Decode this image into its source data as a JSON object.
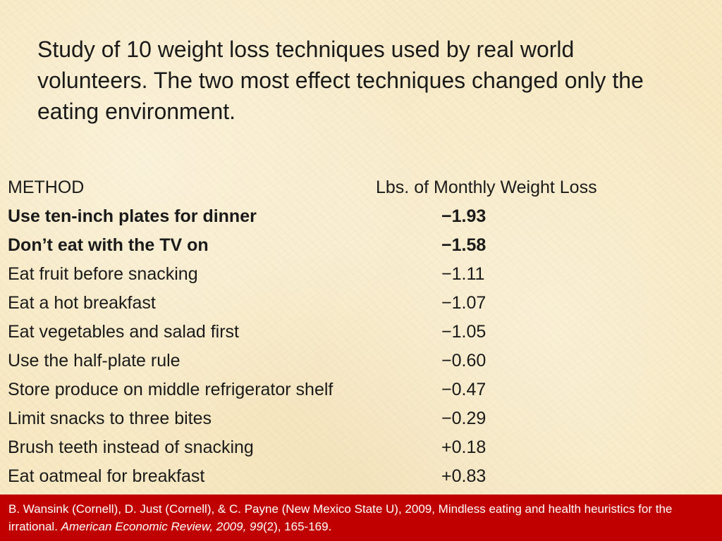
{
  "title": "Study of 10 weight loss techniques used by real world volunteers.  The two most effect techniques changed only the eating environment.",
  "table": {
    "header": {
      "method": "METHOD",
      "value": "Lbs. of Monthly Weight Loss"
    },
    "rows": [
      {
        "method": "Use ten-inch plates for dinner",
        "value": "−1.93",
        "bold": true
      },
      {
        "method": "Don’t eat with the TV on",
        "value": "−1.58",
        "bold": true
      },
      {
        "method": "Eat fruit before snacking",
        "value": "−1.11",
        "bold": false
      },
      {
        "method": "Eat a hot breakfast",
        "value": "−1.07",
        "bold": false
      },
      {
        "method": "Eat vegetables and salad first",
        "value": "−1.05",
        "bold": false
      },
      {
        "method": "Use the half-plate rule",
        "value": "−0.60",
        "bold": false
      },
      {
        "method": "Store produce on middle refrigerator shelf",
        "value": "−0.47",
        "bold": false
      },
      {
        "method": "Limit snacks to three bites",
        "value": "−0.29",
        "bold": false
      },
      {
        "method": "Brush teeth instead of snacking",
        "value": "+0.18",
        "bold": false
      },
      {
        "method": "Eat oatmeal for breakfast",
        "value": "+0.83",
        "bold": false
      }
    ]
  },
  "citation": {
    "text": "B. Wansink (Cornell), D. Just (Cornell), & C. Payne (New Mexico State U), 2009, Mindless eating and health heuristics for the irrational. ",
    "journal": "American Economic Review, 2009, 99",
    "issue_pages": "(2), 165-169."
  },
  "colors": {
    "background": "#f7e9c3",
    "citation_band": "#c00000",
    "text": "#1a1a1a"
  }
}
